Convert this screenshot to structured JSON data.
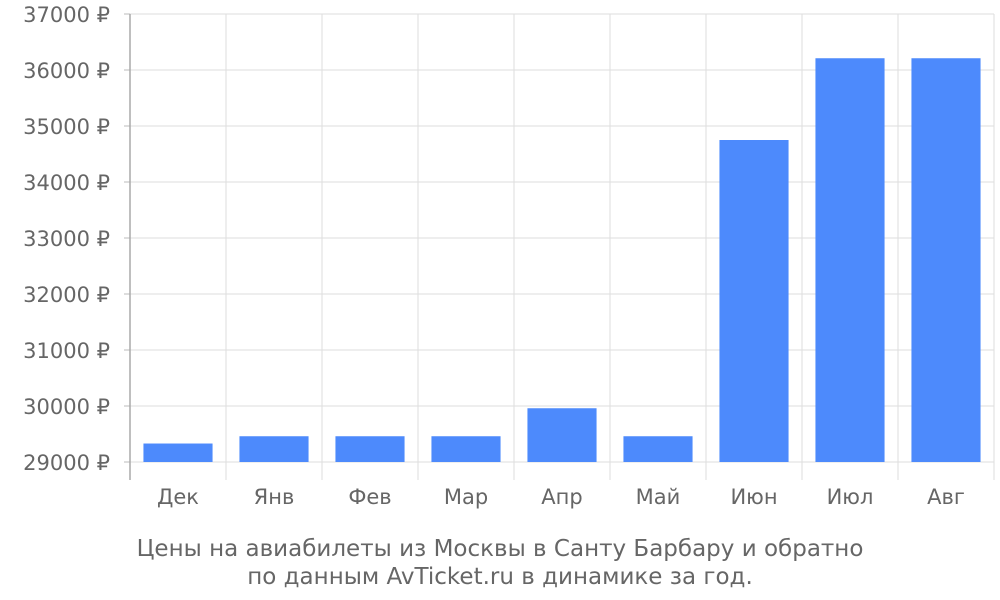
{
  "chart_data": {
    "type": "bar",
    "categories": [
      "Дек",
      "Янв",
      "Фев",
      "Мар",
      "Апр",
      "Май",
      "Июн",
      "Июл",
      "Авг"
    ],
    "values": [
      29330,
      29460,
      29460,
      29460,
      29960,
      29460,
      34750,
      36210,
      36210
    ],
    "ylim": [
      29000,
      37000
    ],
    "yticks": [
      29000,
      30000,
      31000,
      32000,
      33000,
      34000,
      35000,
      36000,
      37000
    ],
    "ytick_suffix": " ₽",
    "grid": true,
    "bar_color": "#4d8afc",
    "caption_lines": [
      "Цены на авиабилеты из Москвы в Санту Барбару и обратно",
      "по данным AvTicket.ru в динамике за год."
    ]
  }
}
